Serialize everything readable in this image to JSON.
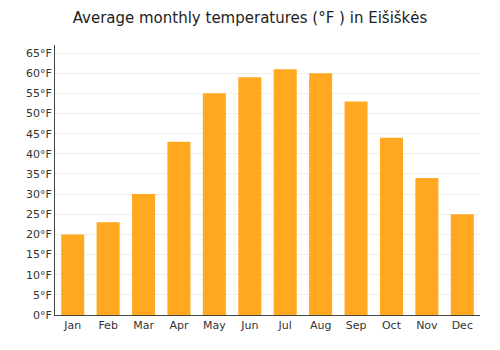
{
  "chart_data": {
    "type": "bar",
    "title": "Average monthly temperatures (°F ) in Eišiškės",
    "categories": [
      "Jan",
      "Feb",
      "Mar",
      "Apr",
      "May",
      "Jun",
      "Jul",
      "Aug",
      "Sep",
      "Oct",
      "Nov",
      "Dec"
    ],
    "values": [
      20,
      23,
      30,
      43,
      55,
      59,
      61,
      60,
      53,
      44,
      34,
      25
    ],
    "color": "#FFA820",
    "ylim": [
      0,
      67
    ],
    "yticks": [
      {
        "value": 0,
        "label": "0°F"
      },
      {
        "value": 5,
        "label": "5°F"
      },
      {
        "value": 10,
        "label": "10°F"
      },
      {
        "value": 15,
        "label": "15°F"
      },
      {
        "value": 20,
        "label": "20°F"
      },
      {
        "value": 25,
        "label": "25°F"
      },
      {
        "value": 30,
        "label": "30°F"
      },
      {
        "value": 35,
        "label": "35°F"
      },
      {
        "value": 40,
        "label": "40°F"
      },
      {
        "value": 45,
        "label": "45°F"
      },
      {
        "value": 50,
        "label": "50°F"
      },
      {
        "value": 55,
        "label": "55°F"
      },
      {
        "value": 60,
        "label": "60°F"
      },
      {
        "value": 65,
        "label": "65°F"
      }
    ],
    "grid": true
  }
}
